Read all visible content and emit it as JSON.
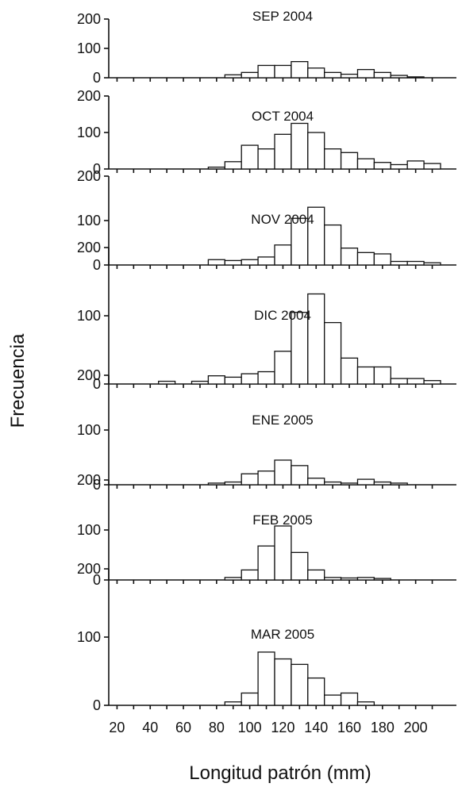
{
  "chart_data": {
    "type": "bar",
    "xlabel": "Longitud patrón (mm)",
    "ylabel": "Frecuencia",
    "bin_width": 10,
    "x_ticks": [
      20,
      40,
      60,
      80,
      100,
      120,
      140,
      160,
      180,
      200
    ],
    "y_ticks": [
      0,
      100,
      200
    ],
    "xlim": [
      15,
      215
    ],
    "ylim": [
      0,
      200
    ],
    "grid": false,
    "panels": [
      {
        "title": "SEP 2004",
        "bins": [
          90,
          100,
          110,
          120,
          130,
          140,
          150,
          160,
          170,
          180,
          190,
          200
        ],
        "values": [
          10,
          18,
          42,
          42,
          55,
          33,
          18,
          12,
          28,
          18,
          8,
          3
        ]
      },
      {
        "title": "OCT 2004",
        "bins": [
          80,
          90,
          100,
          110,
          120,
          130,
          140,
          150,
          160,
          170,
          180,
          190,
          200,
          210
        ],
        "values": [
          5,
          20,
          65,
          55,
          95,
          125,
          100,
          55,
          45,
          28,
          18,
          12,
          22,
          15
        ]
      },
      {
        "title": "NOV 2004",
        "bins": [
          80,
          90,
          100,
          110,
          120,
          130,
          140,
          150,
          160,
          170,
          180,
          190,
          200,
          210
        ],
        "values": [
          12,
          10,
          12,
          18,
          45,
          105,
          130,
          90,
          38,
          28,
          25,
          8,
          8,
          5
        ]
      },
      {
        "title": "DIC 2004",
        "bins": [
          50,
          70,
          80,
          90,
          100,
          110,
          120,
          130,
          140,
          150,
          160,
          170,
          180,
          190,
          200,
          210
        ],
        "values": [
          4,
          4,
          12,
          10,
          15,
          18,
          48,
          105,
          132,
          90,
          38,
          25,
          25,
          8,
          8,
          5
        ]
      },
      {
        "title": "ENE 2005",
        "bins": [
          80,
          90,
          100,
          110,
          120,
          130,
          140,
          150,
          160,
          170,
          180,
          190
        ],
        "values": [
          3,
          5,
          20,
          25,
          45,
          35,
          12,
          5,
          3,
          10,
          5,
          3
        ]
      },
      {
        "title": "FEB 2005",
        "bins": [
          90,
          100,
          110,
          120,
          130,
          140,
          150,
          160,
          170,
          180
        ],
        "values": [
          5,
          20,
          68,
          108,
          55,
          20,
          5,
          4,
          5,
          3
        ]
      },
      {
        "title": "MAR 2005",
        "bins": [
          90,
          100,
          110,
          120,
          130,
          140,
          150,
          160,
          170
        ],
        "values": [
          5,
          18,
          78,
          68,
          60,
          40,
          15,
          18,
          5
        ]
      }
    ]
  }
}
